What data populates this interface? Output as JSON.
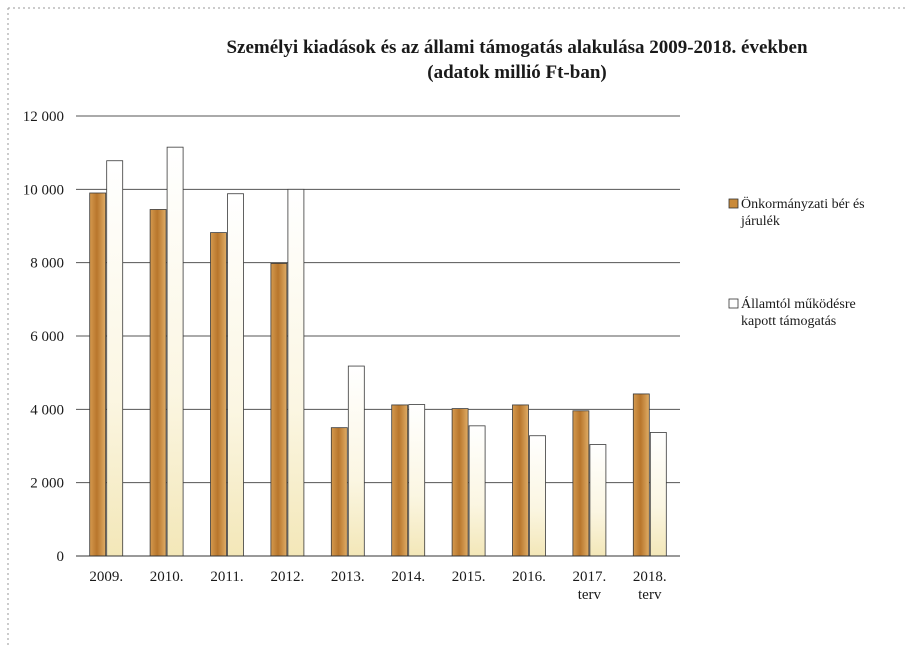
{
  "chart_data": {
    "type": "bar",
    "title": "Személyi kiadások és az állami támogatás alakulása 2009-2018. években",
    "subtitle": "(adatok millió Ft-ban)",
    "categories": [
      "2009.",
      "2010.",
      "2011.",
      "2012.",
      "2013.",
      "2014.",
      "2015.",
      "2016.",
      "2017.\nterv",
      "2018.\nterv"
    ],
    "series": [
      {
        "name": "Önkormányzati bér és járulék",
        "color": "#c98a3a",
        "values": [
          9900,
          9450,
          8820,
          7980,
          3500,
          4120,
          4020,
          4120,
          3960,
          4420
        ]
      },
      {
        "name": "Államtól működésre kapott támogatás",
        "color": "#fbf5dc",
        "values": [
          10780,
          11150,
          9880,
          10000,
          5180,
          4130,
          3550,
          3280,
          3040,
          3370
        ]
      }
    ],
    "yticks": [
      "0",
      "2 000",
      "4 000",
      "6 000",
      "8 000",
      "10 000",
      "12 000"
    ],
    "ylim": [
      0,
      12000
    ],
    "xlabel": "",
    "ylabel": "",
    "grid": true,
    "legend_position": "right"
  }
}
